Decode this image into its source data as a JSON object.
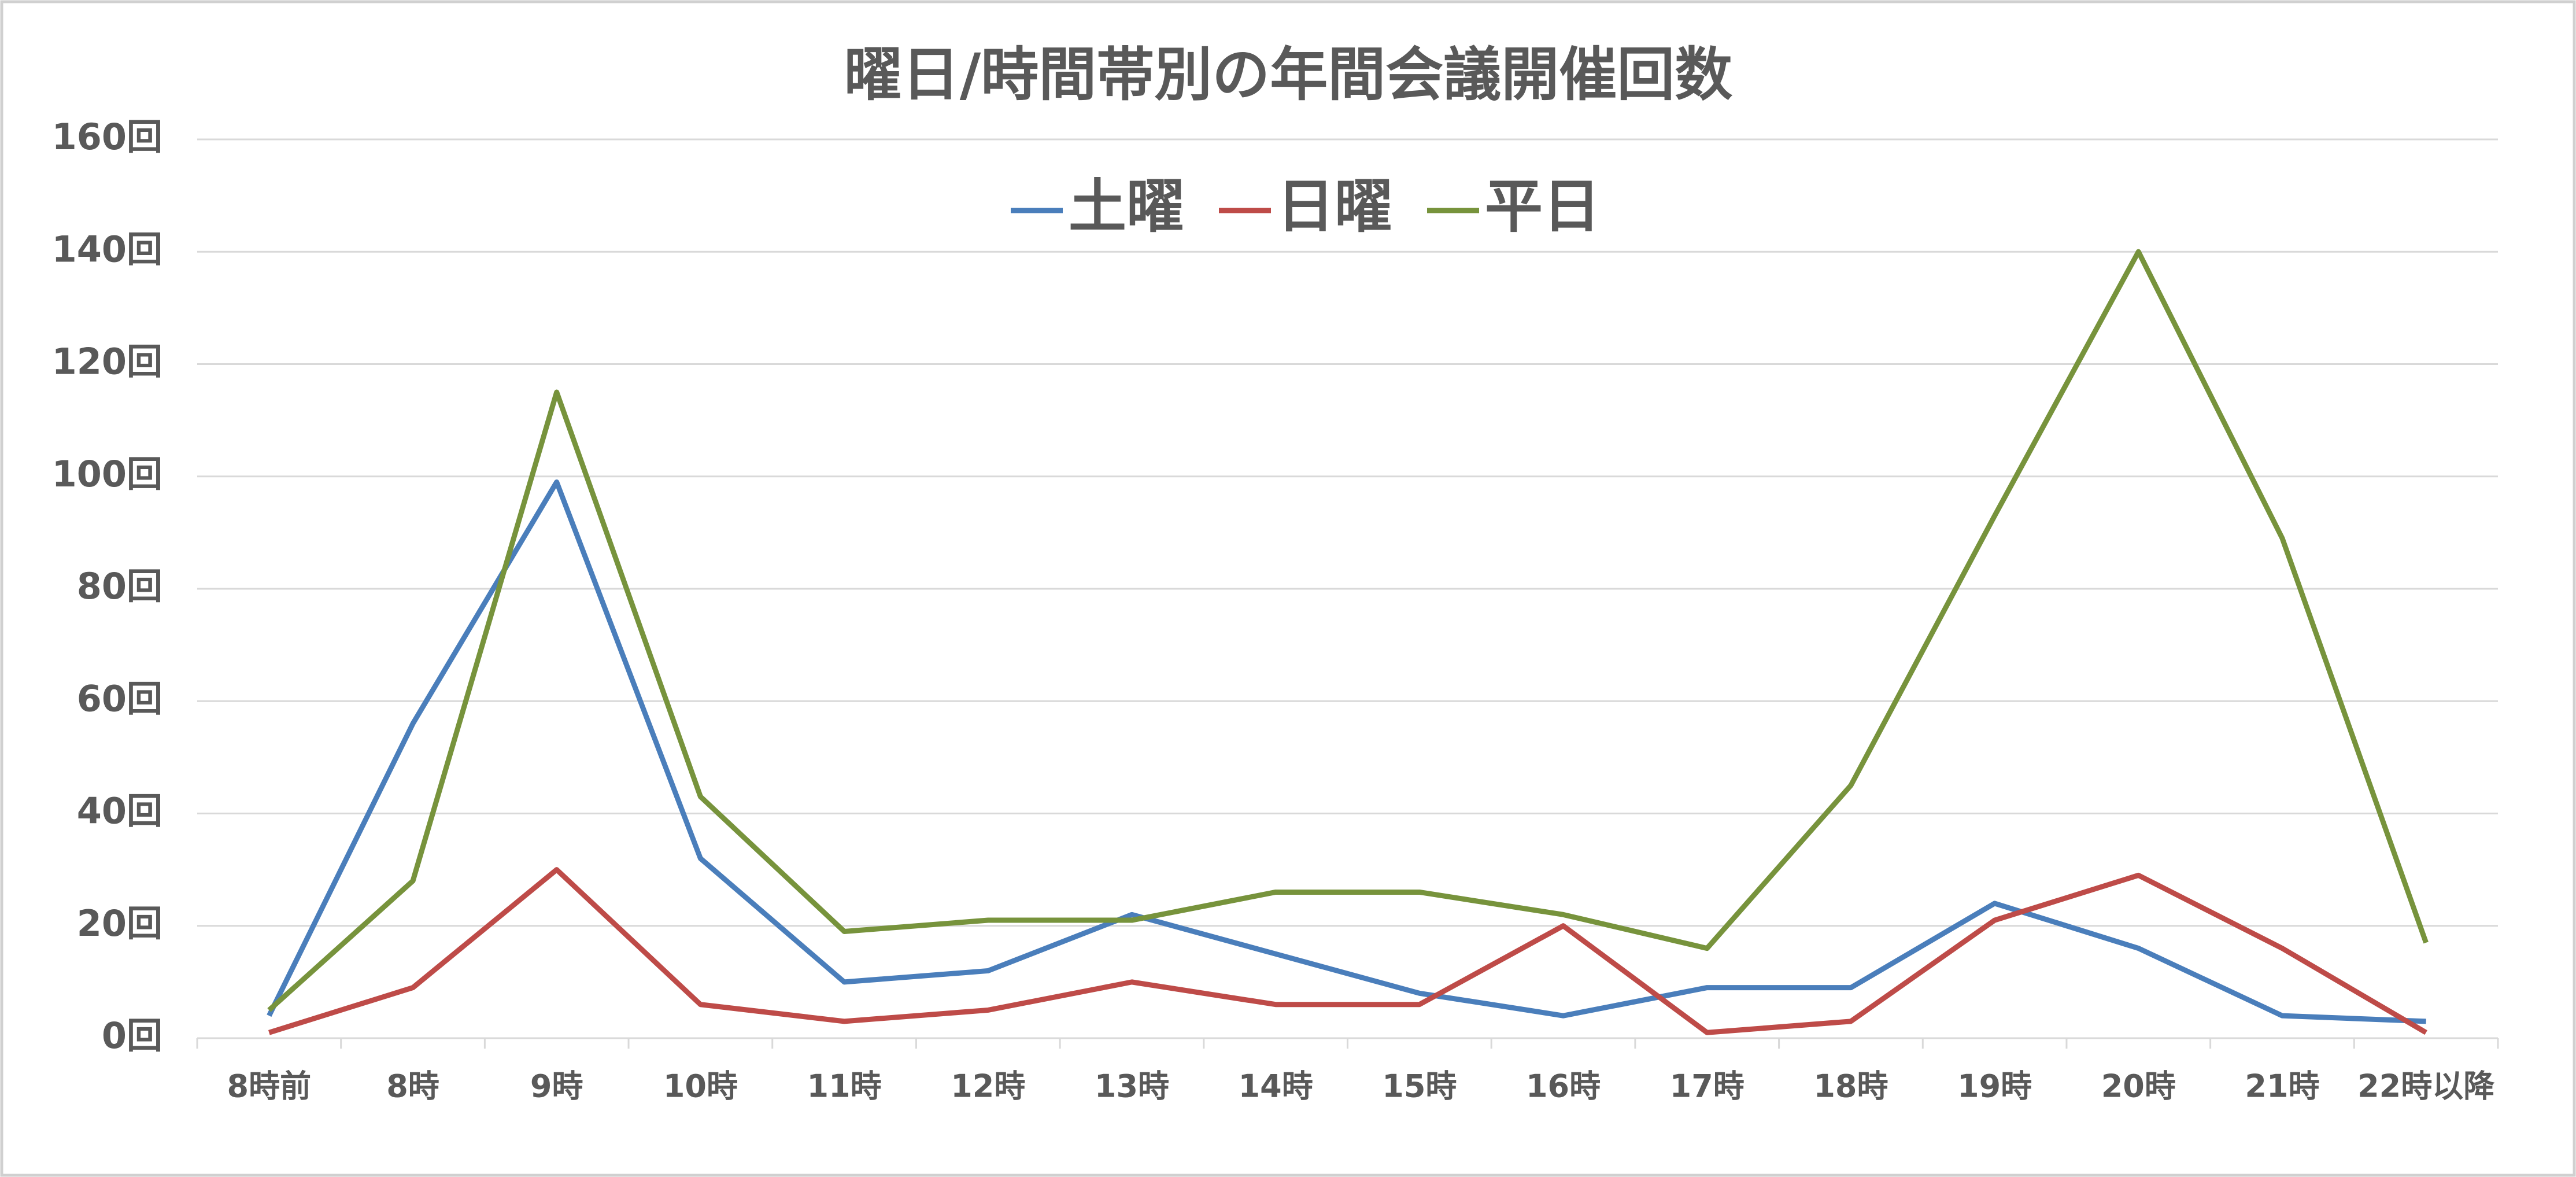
{
  "chart_data": {
    "type": "line",
    "title": "曜日/時間帯別の年間会議開催回数",
    "categories": [
      "8時前",
      "8時",
      "9時",
      "10時",
      "11時",
      "12時",
      "13時",
      "14時",
      "15時",
      "16時",
      "17時",
      "18時",
      "19時",
      "20時",
      "21時",
      "22時以降"
    ],
    "series": [
      {
        "name": "土曜",
        "color": "#4a7ebb",
        "values": [
          4,
          56,
          99,
          32,
          10,
          12,
          22,
          15,
          8,
          4,
          9,
          9,
          24,
          16,
          4,
          3
        ]
      },
      {
        "name": "日曜",
        "color": "#be4b48",
        "values": [
          1,
          9,
          30,
          6,
          3,
          5,
          10,
          6,
          6,
          20,
          1,
          3,
          21,
          29,
          16,
          1
        ]
      },
      {
        "name": "平日",
        "color": "#77933c",
        "values": [
          5,
          28,
          115,
          43,
          19,
          21,
          21,
          26,
          26,
          22,
          16,
          45,
          93,
          140,
          89,
          17
        ]
      }
    ],
    "ylim": [
      0,
      160
    ],
    "yticks": [
      {
        "value": 0,
        "label": "0回"
      },
      {
        "value": 20,
        "label": "20回"
      },
      {
        "value": 40,
        "label": "40回"
      },
      {
        "value": 60,
        "label": "60回"
      },
      {
        "value": 80,
        "label": "80回"
      },
      {
        "value": 100,
        "label": "100回"
      },
      {
        "value": 120,
        "label": "120回"
      },
      {
        "value": 140,
        "label": "140回"
      },
      {
        "value": 160,
        "label": "160回"
      }
    ],
    "grid": true,
    "legend_position": "top"
  }
}
